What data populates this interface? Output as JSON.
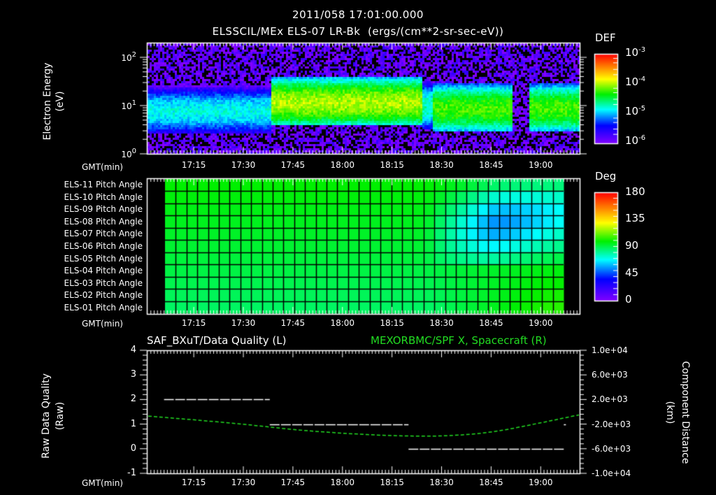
{
  "header": {
    "timestamp": "2011/058 17:01:00.000",
    "subtitle": "ELSSCIL/MEx ELS-07 LR-Bk  (ergs/(cm**2-sr-sec-eV))"
  },
  "colors": {
    "background": "#000000",
    "axes": "#ffffff",
    "right_series": "#22dd22",
    "left_series": "#ffffff"
  },
  "time_axis": {
    "label": "GMT(min)",
    "start": "17:01",
    "start_min": 1021,
    "end_min": 1151.7,
    "ticks": [
      "17:15",
      "17:30",
      "17:45",
      "18:00",
      "18:15",
      "18:30",
      "18:45",
      "19:00"
    ],
    "tick_min": [
      1035,
      1050,
      1065,
      1080,
      1095,
      1110,
      1125,
      1140
    ]
  },
  "panels": {
    "spectrogram": {
      "ylabel": "Electron Energy",
      "yunit": "(eV)",
      "yticks": [
        {
          "base": "10",
          "exp": "2",
          "value": 100
        },
        {
          "base": "10",
          "exp": "1",
          "value": 10
        },
        {
          "base": "10",
          "exp": "0",
          "value": 1
        }
      ],
      "colorbar": {
        "title": "DEF",
        "ticks": [
          {
            "base": "10",
            "exp": "-3"
          },
          {
            "base": "10",
            "exp": "-4"
          },
          {
            "base": "10",
            "exp": "-5"
          },
          {
            "base": "10",
            "exp": "-6"
          }
        ]
      }
    },
    "pitch": {
      "rows": [
        "ELS-11 Pitch Angle",
        "ELS-10 Pitch Angle",
        "ELS-09 Pitch Angle",
        "ELS-08 Pitch Angle",
        "ELS-07 Pitch Angle",
        "ELS-06 Pitch Angle",
        "ELS-05 Pitch Angle",
        "ELS-04 Pitch Angle",
        "ELS-03 Pitch Angle",
        "ELS-02 Pitch Angle",
        "ELS-01 Pitch Angle"
      ],
      "colorbar": {
        "title": "Deg",
        "ticks": [
          "180",
          "135",
          "90",
          "45",
          "0"
        ]
      }
    },
    "lineplot": {
      "left_title": "SAF_BXuT/Data Quality (L)",
      "right_title": "MEXORBMC/SPF X, Spacecraft (R)",
      "left_ylabel": "Raw Data Quality",
      "left_yunit": "(Raw)",
      "left_yticks": [
        "4",
        "3",
        "2",
        "1",
        "0",
        "-1"
      ],
      "right_ylabel": "Component Distance",
      "right_yunit": "(km)",
      "right_yticks": [
        "1.0e+04",
        "6.0e+03",
        "2.0e+03",
        "-2.0e+03",
        "-6.0e+03",
        "-1.0e+04"
      ]
    }
  },
  "chart_data": [
    {
      "type": "heatmap",
      "title": "ELSSCIL/MEx ELS-07 LR-Bk (ergs/(cm**2-sr-sec-eV))",
      "xlabel": "GMT(min)",
      "ylabel": "Electron Energy (eV)",
      "yscale": "log",
      "ylim": [
        1,
        150
      ],
      "colorbar": {
        "label": "DEF",
        "scale": "log",
        "range": [
          1e-06,
          0.001
        ]
      },
      "x_ticks": [
        "17:15",
        "17:30",
        "17:45",
        "18:00",
        "18:15",
        "18:30",
        "18:45",
        "19:00"
      ],
      "bands": [
        {
          "start": "17:01",
          "end": "17:38",
          "energy_center_eV": 8,
          "peak_def": 1.5e-05
        },
        {
          "start": "17:38",
          "end": "18:24",
          "energy_center_eV": 12,
          "peak_def": 0.0001
        },
        {
          "start": "18:24",
          "end": "18:27",
          "energy_center_eV": 10,
          "peak_def": 2e-05
        },
        {
          "start": "18:27",
          "end": "18:51",
          "energy_center_eV": 9,
          "peak_def": 6e-05
        },
        {
          "start": "18:51",
          "end": "18:56",
          "energy_center_eV": 10,
          "peak_def": 1e-06,
          "note": "data gap"
        },
        {
          "start": "18:56",
          "end": "19:11",
          "energy_center_eV": 9,
          "peak_def": 6e-05
        }
      ]
    },
    {
      "type": "heatmap",
      "title": "ELS Pitch Angle",
      "xlabel": "GMT(min)",
      "colorbar": {
        "label": "Deg",
        "range": [
          0,
          180
        ],
        "ticks": [
          0,
          45,
          90,
          135,
          180
        ]
      },
      "rows": [
        "ELS-11",
        "ELS-10",
        "ELS-09",
        "ELS-08",
        "ELS-07",
        "ELS-06",
        "ELS-05",
        "ELS-04",
        "ELS-03",
        "ELS-02",
        "ELS-01"
      ],
      "x_range": [
        "17:06",
        "19:07"
      ],
      "summary": "Uniform ~88-100 deg (green) until ~18:25; afterwards ELS-06..ELS-11 drop to ~50-60 deg (blue, minimum near 18:40 on ELS-07/08) while ELS-01..ELS-04 rise to ~100-115 deg (yellow-green) near 18:45-19:00"
    },
    {
      "type": "line",
      "title": "SAF_BXuT/Data Quality (L) / MEXORBMC/SPF X, Spacecraft (R)",
      "xlabel": "GMT(min)",
      "ylabel": "Raw Data Quality (Raw)",
      "ylim": [
        -1,
        4
      ],
      "y2label": "Component Distance (km)",
      "y2lim": [
        -10000,
        10000
      ],
      "series": [
        {
          "name": "SAF_BXuT/Data Quality",
          "axis": "left",
          "segments": [
            {
              "start": "17:06",
              "end": "17:38",
              "value": 2
            },
            {
              "start": "17:38",
              "end": "18:20",
              "value": 1
            },
            {
              "start": "18:20",
              "end": "19:07",
              "value": 0
            },
            {
              "start": "19:07",
              "end": "19:07",
              "value": 1
            }
          ]
        },
        {
          "name": "MEXORBMC/SPF X, Spacecraft",
          "axis": "right",
          "x": [
            "17:01",
            "17:15",
            "17:30",
            "17:45",
            "18:00",
            "18:15",
            "18:30",
            "18:45",
            "19:00",
            "19:11"
          ],
          "values": [
            -700,
            -1300,
            -2000,
            -2900,
            -3500,
            -3900,
            -4000,
            -3400,
            -1800,
            -500
          ]
        }
      ]
    }
  ]
}
